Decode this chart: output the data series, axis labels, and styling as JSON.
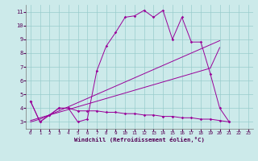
{
  "xlabel": "Windchill (Refroidissement éolien,°C)",
  "bg_color": "#cceaea",
  "line_color": "#990099",
  "grid_color": "#99cccc",
  "x_data": [
    0,
    1,
    2,
    3,
    4,
    5,
    6,
    7,
    8,
    9,
    10,
    11,
    12,
    13,
    14,
    15,
    16,
    17,
    18,
    19,
    20,
    21,
    22,
    23
  ],
  "y_main": [
    4.5,
    3.0,
    3.5,
    4.0,
    4.0,
    3.0,
    3.2,
    6.7,
    8.5,
    9.5,
    10.6,
    10.7,
    11.1,
    10.6,
    11.1,
    9.0,
    10.6,
    8.8,
    8.8,
    6.5,
    4.0,
    3.0,
    null,
    null
  ],
  "y_flat": [
    4.5,
    3.0,
    3.5,
    4.0,
    4.0,
    3.8,
    3.8,
    3.8,
    3.7,
    3.7,
    3.6,
    3.6,
    3.5,
    3.5,
    3.4,
    3.4,
    3.3,
    3.3,
    3.2,
    3.2,
    3.1,
    3.0,
    null,
    null
  ],
  "y_line1": [
    3.1,
    3.3,
    3.5,
    3.7,
    3.9,
    4.1,
    4.3,
    4.5,
    4.7,
    4.9,
    5.1,
    5.3,
    5.5,
    5.7,
    5.9,
    6.1,
    6.3,
    6.5,
    6.7,
    6.9,
    8.4,
    null,
    null,
    null
  ],
  "y_line2": [
    3.0,
    3.2,
    3.5,
    3.8,
    4.1,
    4.4,
    4.7,
    5.0,
    5.3,
    5.6,
    5.9,
    6.2,
    6.5,
    6.8,
    7.1,
    7.4,
    7.7,
    8.0,
    8.3,
    8.6,
    8.9,
    null,
    null,
    null
  ],
  "xlim": [
    -0.5,
    23.5
  ],
  "ylim": [
    2.5,
    11.5
  ],
  "yticks": [
    3,
    4,
    5,
    6,
    7,
    8,
    9,
    10,
    11
  ],
  "xticks": [
    0,
    1,
    2,
    3,
    4,
    5,
    6,
    7,
    8,
    9,
    10,
    11,
    12,
    13,
    14,
    15,
    16,
    17,
    18,
    19,
    20,
    21,
    22,
    23
  ]
}
